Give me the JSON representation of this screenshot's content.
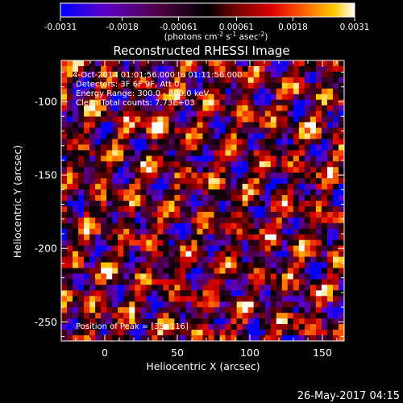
{
  "chart_data": {
    "type": "heatmap",
    "title": "Reconstructed RHESSI Image",
    "xlabel": "Heliocentric X (arcsec)",
    "ylabel": "Heliocentric Y (arcsec)",
    "xlim": [
      -30,
      165
    ],
    "ylim": [
      -263,
      -72
    ],
    "x_ticks": [
      "0",
      "50",
      "100",
      "150"
    ],
    "y_ticks": [
      "-100",
      "-150",
      "-200",
      "-250"
    ],
    "x_tick_values": [
      0,
      50,
      100,
      150
    ],
    "y_tick_values": [
      -100,
      -150,
      -200,
      -250
    ],
    "colorbar": {
      "ticks": [
        "-0.0031",
        "-0.0018",
        "-0.00061",
        "0.00061",
        "0.0018",
        "0.0031"
      ],
      "tick_values": [
        -0.0031,
        -0.0018,
        -0.00061,
        0.00061,
        0.0018,
        0.0031
      ],
      "min": -0.0031,
      "max": 0.0031,
      "unit_label_parts": [
        "(photons cm",
        "-2",
        " s",
        "-1",
        " asec",
        "-2",
        ")"
      ]
    },
    "annotations": [
      "4-Oct-2014 01:01:56.000 to 01:11:56.000",
      "Detectors: 3F 6F 9F, Att 0",
      "Energy Range: 300.0 - 800.0 keV",
      "Clean     Total counts: 7.73E+03"
    ],
    "footer_annotation": "Position of Peak = [35,-116]",
    "grid": false,
    "legend": "none"
  },
  "timestamp": "26-May-2017 04:15",
  "colors": {
    "background": "#000000",
    "text": "#ffffff",
    "colormap": [
      "#0000ff",
      "#5a00c8",
      "#500046",
      "#000000",
      "#780000",
      "#dc0000",
      "#ff6400",
      "#ffc800",
      "#ffffff"
    ]
  }
}
